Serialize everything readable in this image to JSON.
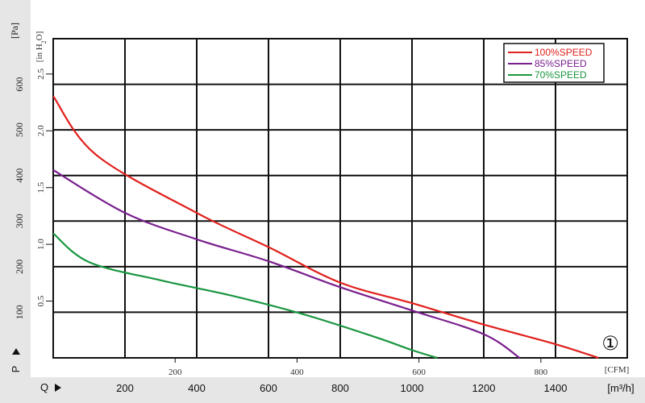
{
  "chart_data": {
    "type": "line",
    "title": "",
    "curve_badge": "①",
    "x_primary": {
      "label_letter": "Q",
      "unit": "[m³/h]",
      "range": [
        0,
        1600
      ],
      "ticks": [
        200,
        400,
        600,
        800,
        1000,
        1200,
        1400
      ]
    },
    "x_secondary": {
      "unit": "[CFM]",
      "ticks": [
        200,
        400,
        600,
        800
      ]
    },
    "y_primary": {
      "label_letter": "P",
      "unit": "[Pa]",
      "range": [
        0,
        700
      ],
      "ticks": [
        100,
        200,
        300,
        400,
        500,
        600
      ]
    },
    "y_secondary": {
      "unit_prefix": "[in H",
      "unit_sub": "2",
      "unit_suffix": "O]",
      "ticks": [
        "0.5",
        "1.0",
        "1.5",
        "2.0",
        "2.5"
      ],
      "tick_values_pa": [
        124.5,
        249,
        373.5,
        498,
        622.5
      ]
    },
    "grid": true,
    "legend_position": "top-right",
    "series": [
      {
        "name": "100%SPEED",
        "color": "#e0201c",
        "points": [
          [
            0,
            574
          ],
          [
            120,
            445
          ],
          [
            400,
            318
          ],
          [
            600,
            243
          ],
          [
            800,
            165
          ],
          [
            1000,
            120
          ],
          [
            1200,
            73
          ],
          [
            1400,
            30
          ],
          [
            1520,
            0
          ]
        ]
      },
      {
        "name": "85%SPEED",
        "color": "#7a1f8e",
        "points": [
          [
            0,
            412
          ],
          [
            200,
            318
          ],
          [
            400,
            260
          ],
          [
            600,
            212
          ],
          [
            800,
            155
          ],
          [
            1000,
            104
          ],
          [
            1200,
            52
          ],
          [
            1300,
            0
          ]
        ]
      },
      {
        "name": "70%SPEED",
        "color": "#1a9640",
        "points": [
          [
            0,
            273
          ],
          [
            100,
            210
          ],
          [
            300,
            170
          ],
          [
            500,
            136
          ],
          [
            700,
            95
          ],
          [
            900,
            45
          ],
          [
            1000,
            17
          ],
          [
            1070,
            0
          ]
        ]
      }
    ]
  }
}
